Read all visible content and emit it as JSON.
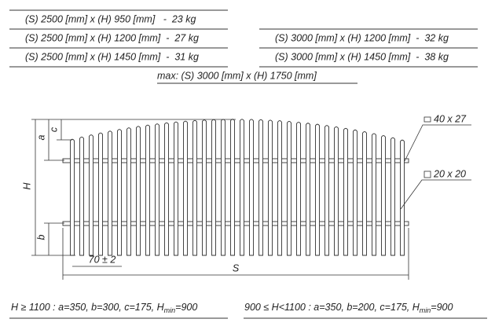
{
  "specs": {
    "left": [
      "(S) 2500 [mm] x (H) 950 [mm]   -  23 kg",
      "(S) 2500 [mm] x (H) 1200 [mm]  -  27 kg",
      "(S) 2500 [mm] x (H) 1450 [mm]  -  31 kg"
    ],
    "right": [
      "(S) 3000 [mm] x (H) 1200 [mm]  -  32 kg",
      "(S) 3000 [mm] x (H) 1450 [mm]  -  38 kg"
    ],
    "max": "max: (S) 3000 [mm] x (H) 1750 [mm]"
  },
  "drawing": {
    "a": "a",
    "c": "c",
    "H": "H",
    "b": "b",
    "spacing": "70 ± 2",
    "S": "S",
    "top_rail": "40 x 27",
    "picket": "20 x 20"
  },
  "footer": {
    "left": {
      "text": "H ≥ 1100 : a=350, b=300, c=175, H",
      "subscript": "min",
      "suffix": "=900"
    },
    "right": {
      "text": "900 ≤ H<1100 : a=350, b=200, c=175, H",
      "subscript": "min",
      "suffix": "=900"
    }
  }
}
